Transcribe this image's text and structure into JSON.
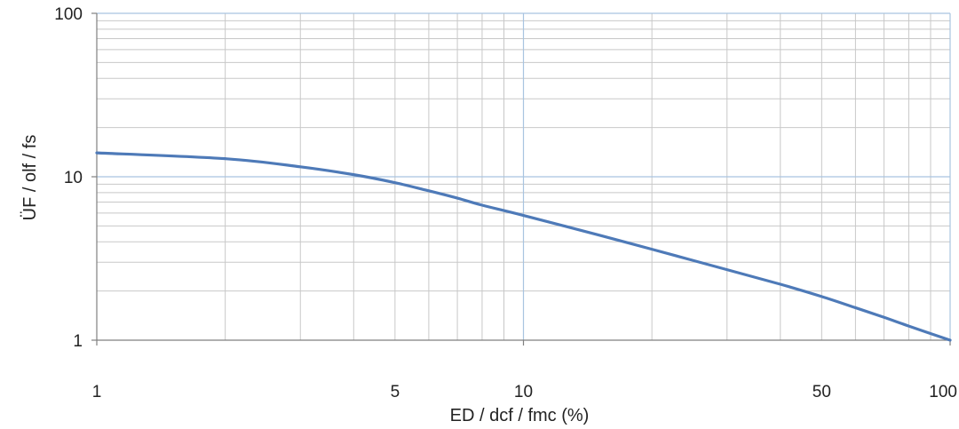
{
  "chart_data": {
    "type": "line",
    "title": "",
    "xlabel": "ED / dcf / fmc (%)",
    "ylabel": "ÜF / olf / fs",
    "x_scale": "log",
    "y_scale": "log",
    "xlim": [
      1,
      100
    ],
    "ylim": [
      1,
      100
    ],
    "x_tick_labels": [
      {
        "value": 1,
        "label": "1"
      },
      {
        "value": 5,
        "label": "5"
      },
      {
        "value": 10,
        "label": "10"
      },
      {
        "value": 50,
        "label": "50"
      },
      {
        "value": 100,
        "label": "100"
      }
    ],
    "y_tick_labels": [
      {
        "value": 1,
        "label": "1"
      },
      {
        "value": 10,
        "label": "10"
      },
      {
        "value": 100,
        "label": "100"
      }
    ],
    "grid": true,
    "legend": "none",
    "colors": {
      "line": "#4e7ab8",
      "grid_minor": "#c8c8c8",
      "grid_major": "#a9c4e0",
      "axis": "#808080"
    },
    "series": [
      {
        "x": [
          1,
          2,
          3,
          4,
          5,
          6,
          7,
          8,
          10,
          15,
          20,
          30,
          40,
          50,
          60,
          70,
          80,
          100
        ],
        "y": [
          14,
          12.9,
          11.5,
          10.3,
          9.2,
          8.2,
          7.4,
          6.7,
          5.8,
          4.4,
          3.6,
          2.7,
          2.2,
          1.85,
          1.58,
          1.38,
          1.22,
          1.0
        ]
      }
    ]
  }
}
